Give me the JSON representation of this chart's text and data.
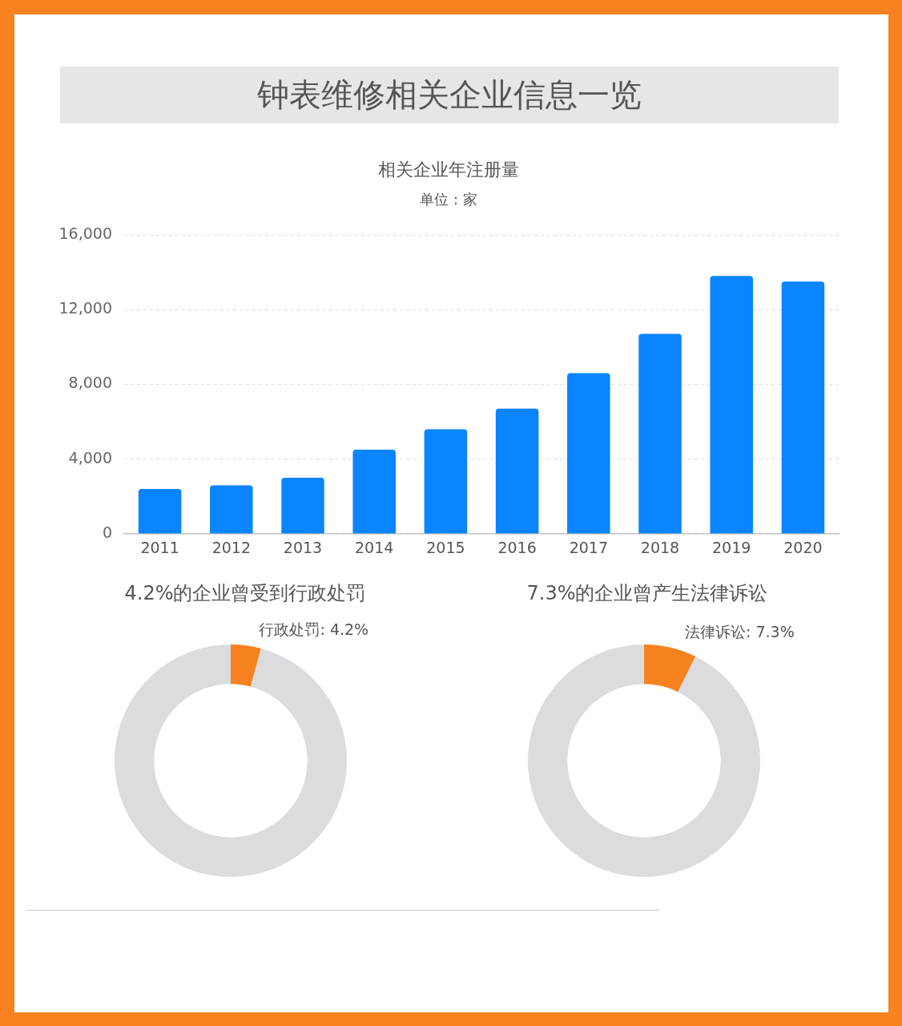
{
  "chart_data": [
    {
      "type": "other",
      "title": "钟表维修相关企业信息一览"
    },
    {
      "type": "bar",
      "title": "相关企业年注册量",
      "subtitle": "单位：家",
      "categories": [
        "2011",
        "2012",
        "2013",
        "2014",
        "2015",
        "2016",
        "2017",
        "2018",
        "2019",
        "2020"
      ],
      "values": [
        2400,
        2600,
        3000,
        4500,
        5600,
        6700,
        8600,
        10700,
        13800,
        13500
      ],
      "color": "#0a85ff",
      "ylim": [
        0,
        16000
      ],
      "yticks": [
        0,
        {
          "value": 4000,
          "label": "4,000"
        },
        {
          "value": 8000,
          "label": "8,000"
        },
        {
          "value": 12000,
          "label": "12,000"
        },
        {
          "value": 16000,
          "label": "16,000"
        }
      ],
      "grid": "y"
    },
    {
      "type": "donut",
      "title": "4.2%的企业曾受到行政处罚",
      "categories": [
        null,
        null
      ],
      "values": [
        4.2,
        95.8
      ],
      "colors": [
        "#f5821f",
        "#dcdcde"
      ],
      "value_labels": [
        "行政处罚: 4.2%",
        null
      ]
    },
    {
      "type": "donut",
      "title": "7.3%的企业曾产生法律诉讼",
      "categories": [
        null,
        null
      ],
      "values": [
        7.3,
        92.7
      ],
      "colors": [
        "#f5821f",
        "#dcdcde"
      ],
      "value_labels": [
        "法律诉讼: 7.3%",
        null
      ]
    }
  ]
}
